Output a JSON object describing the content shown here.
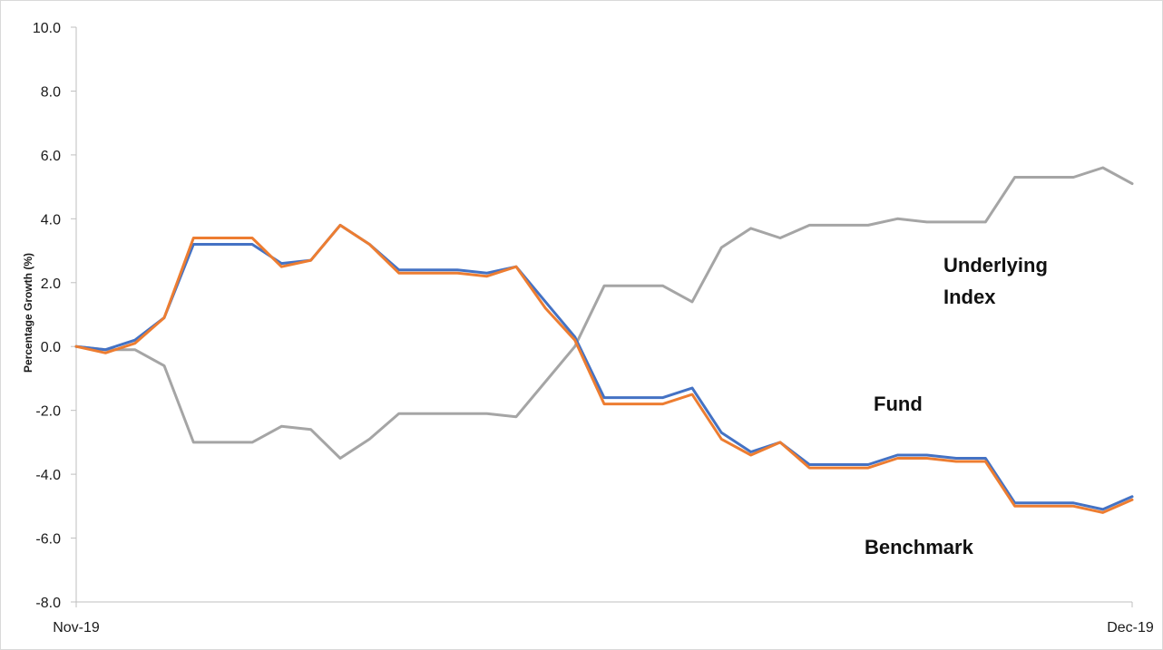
{
  "chart_data": {
    "type": "line",
    "ylabel": "Percentage Growth (%)",
    "xlabel": "",
    "ylim": [
      -8.0,
      10.0
    ],
    "yticks": [
      "10.0",
      "8.0",
      "6.0",
      "4.0",
      "2.0",
      "0.0",
      "-2.0",
      "-4.0",
      "-6.0",
      "-8.0"
    ],
    "x_start_label": "Nov-19",
    "x_end_label": "Dec-19",
    "grid": false,
    "legend": "none",
    "series": [
      {
        "name": "Underlying Index",
        "color": "#a5a5a5",
        "values": [
          0.0,
          -0.1,
          -0.1,
          -0.6,
          -3.0,
          -3.0,
          -3.0,
          -2.5,
          -2.6,
          -3.5,
          -2.9,
          -2.1,
          -2.1,
          -2.1,
          -2.1,
          -2.2,
          -1.1,
          0.0,
          1.9,
          1.9,
          1.9,
          1.4,
          3.1,
          3.7,
          3.4,
          3.8,
          3.8,
          3.8,
          4.0,
          3.9,
          3.9,
          3.9,
          5.3,
          5.3,
          5.3,
          5.6,
          5.1
        ]
      },
      {
        "name": "Fund",
        "color": "#4472c4",
        "values": [
          0.0,
          -0.1,
          0.2,
          0.9,
          3.2,
          3.2,
          3.2,
          2.6,
          2.7,
          3.8,
          3.2,
          2.4,
          2.4,
          2.4,
          2.3,
          2.5,
          1.4,
          0.3,
          -1.6,
          -1.6,
          -1.6,
          -1.3,
          -2.7,
          -3.3,
          -3.0,
          -3.7,
          -3.7,
          -3.7,
          -3.4,
          -3.4,
          -3.5,
          -3.5,
          -4.9,
          -4.9,
          -4.9,
          -5.1,
          -4.7
        ]
      },
      {
        "name": "Benchmark",
        "color": "#ed7d31",
        "values": [
          0.0,
          -0.2,
          0.1,
          0.9,
          3.4,
          3.4,
          3.4,
          2.5,
          2.7,
          3.8,
          3.2,
          2.3,
          2.3,
          2.3,
          2.2,
          2.5,
          1.2,
          0.2,
          -1.8,
          -1.8,
          -1.8,
          -1.5,
          -2.9,
          -3.4,
          -3.0,
          -3.8,
          -3.8,
          -3.8,
          -3.5,
          -3.5,
          -3.6,
          -3.6,
          -5.0,
          -5.0,
          -5.0,
          -5.2,
          -4.8
        ]
      }
    ],
    "annotations": [
      "Underlying Index",
      "Fund",
      "Benchmark"
    ]
  }
}
